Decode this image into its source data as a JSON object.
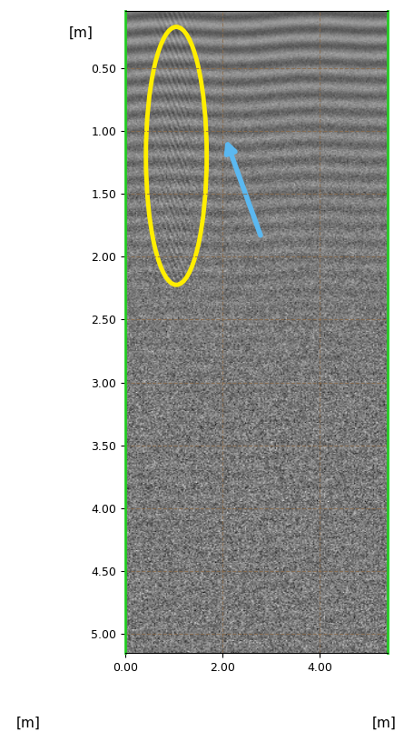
{
  "chart_data": {
    "type": "image",
    "xlabel": "[m]",
    "ylabel": "[m]",
    "annotations": [
      "[m]"
    ],
    "xlim": [
      0,
      5.4
    ],
    "ylim": [
      5.15,
      0.05
    ],
    "xticks": [
      {
        "value": 0,
        "label": "0.00"
      },
      {
        "value": 2,
        "label": "2.00"
      },
      {
        "value": 4,
        "label": "4.00"
      }
    ],
    "yticks": [
      {
        "value": 0.5,
        "label": "0.50"
      },
      {
        "value": 1.0,
        "label": "1.00"
      },
      {
        "value": 1.5,
        "label": "1.50"
      },
      {
        "value": 2.0,
        "label": "2.00"
      },
      {
        "value": 2.5,
        "label": "2.50"
      },
      {
        "value": 3.0,
        "label": "3.00"
      },
      {
        "value": 3.5,
        "label": "3.50"
      },
      {
        "value": 4.0,
        "label": "4.00"
      },
      {
        "value": 4.5,
        "label": "4.50"
      },
      {
        "value": 5.0,
        "label": "5.00"
      }
    ],
    "grid": true
  }
}
